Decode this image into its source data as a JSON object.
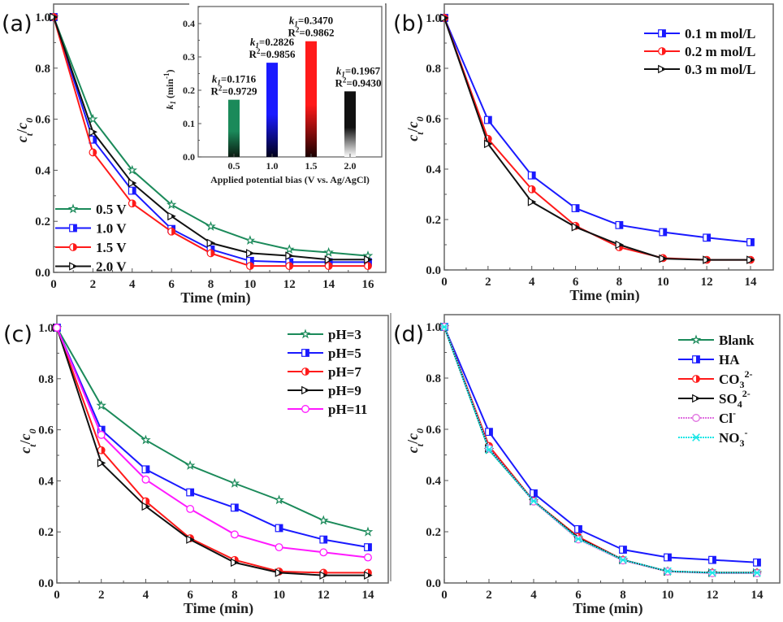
{
  "figure": {
    "panels": [
      "(a)",
      "(b)",
      "(c)",
      "(d)"
    ]
  },
  "chart_data": [
    {
      "id": "a",
      "panel_label": "(a)",
      "type": "line",
      "xlabel": "Time (min)",
      "ylabel": "c_t/c_0",
      "ylabel_parts": {
        "c1": "c",
        "sub1": "t",
        "slash": "/",
        "c2": "c",
        "sub2": "0"
      },
      "x": [
        0,
        2,
        4,
        6,
        8,
        10,
        12,
        14,
        16
      ],
      "xlim": [
        0,
        16.8
      ],
      "ylim": [
        0,
        1.05
      ],
      "xticks": [
        "0",
        "2",
        "4",
        "6",
        "8",
        "10",
        "12",
        "14",
        "16"
      ],
      "yticks": [
        "0.0",
        "0.2",
        "0.4",
        "0.6",
        "0.8",
        "1.0"
      ],
      "legend_position": "bottom-left",
      "series": [
        {
          "name": "0.5 V",
          "color": "#1b8a5a",
          "marker": "star",
          "values": [
            1.0,
            0.6,
            0.4,
            0.265,
            0.18,
            0.125,
            0.09,
            0.078,
            0.065
          ]
        },
        {
          "name": "1.0 V",
          "color": "#1a1aff",
          "marker": "half-square",
          "values": [
            1.0,
            0.52,
            0.32,
            0.17,
            0.09,
            0.045,
            0.04,
            0.04,
            0.04
          ]
        },
        {
          "name": "1.5 V",
          "color": "#ff1a1a",
          "marker": "half-circle",
          "values": [
            1.0,
            0.47,
            0.27,
            0.16,
            0.075,
            0.025,
            0.025,
            0.025,
            0.025
          ]
        },
        {
          "name": "2.0 V",
          "color": "#111111",
          "marker": "triangle-right",
          "values": [
            1.0,
            0.55,
            0.35,
            0.22,
            0.115,
            0.075,
            0.065,
            0.05,
            0.05
          ]
        }
      ],
      "inset": {
        "type": "bar",
        "xlabel": "Applied potential bias (V vs. Ag/AgCl)",
        "ylabel": "k_1 (min^-1)",
        "ylabel_parts": {
          "k": "k",
          "sub": "1",
          "unit": " (min",
          "sup": "-1",
          "close": ")"
        },
        "categories": [
          "0.5",
          "1.0",
          "1.5",
          "2.0"
        ],
        "values": [
          0.1716,
          0.2826,
          0.347,
          0.1967
        ],
        "colors": [
          "#1b8a5a",
          "#1a1aff",
          "#ff1a1a",
          "#111111"
        ],
        "gradient_bottom": [
          "#0a1a10",
          "#00001a",
          "#1a0000",
          "#ffffff"
        ],
        "yticks": [
          "0.0",
          "0.1",
          "0.2",
          "0.3",
          "0.4"
        ],
        "ylim": [
          0,
          0.45
        ],
        "annotations": [
          {
            "k_label": "k",
            "k_sub": "1",
            "k_value": "=0.1716",
            "r_label": "R",
            "r_sup": "2",
            "r_value": "=0.9729"
          },
          {
            "k_label": "k",
            "k_sub": "1",
            "k_value": "=0.2826",
            "r_label": "R",
            "r_sup": "2",
            "r_value": "=0.9856"
          },
          {
            "k_label": "k",
            "k_sub": "1",
            "k_value": "=0.3470",
            "r_label": "R",
            "r_sup": "2",
            "r_value": "=0.9862"
          },
          {
            "k_label": "k",
            "k_sub": "1",
            "k_value": "=0.1967",
            "r_label": "R",
            "r_sup": "2",
            "r_value": "=0.9430"
          }
        ]
      }
    },
    {
      "id": "b",
      "panel_label": "(b)",
      "type": "line",
      "xlabel": "Time (min)",
      "ylabel": "c_t/c_0",
      "ylabel_parts": {
        "c1": "c",
        "sub1": "t",
        "slash": "/",
        "c2": "c",
        "sub2": "0"
      },
      "x": [
        0,
        2,
        4,
        6,
        8,
        10,
        12,
        14
      ],
      "xlim": [
        0,
        14.7
      ],
      "ylim": [
        0,
        1.05
      ],
      "xticks": [
        "0",
        "2",
        "4",
        "6",
        "8",
        "10",
        "12",
        "14"
      ],
      "yticks": [
        "0.0",
        "0.2",
        "0.4",
        "0.6",
        "0.8",
        "1.0"
      ],
      "legend_position": "top-right",
      "series": [
        {
          "name": "0.1 m mol/L",
          "color": "#1a1aff",
          "marker": "half-square",
          "values": [
            1.0,
            0.595,
            0.375,
            0.245,
            0.178,
            0.15,
            0.128,
            0.11
          ]
        },
        {
          "name": "0.2 m mol/L",
          "color": "#ff1a1a",
          "marker": "half-circle",
          "values": [
            1.0,
            0.52,
            0.32,
            0.175,
            0.09,
            0.047,
            0.04,
            0.04
          ]
        },
        {
          "name": "0.3 m mol/L",
          "color": "#111111",
          "marker": "triangle-right",
          "values": [
            1.0,
            0.5,
            0.27,
            0.17,
            0.1,
            0.045,
            0.04,
            0.04
          ]
        }
      ]
    },
    {
      "id": "c",
      "panel_label": "(c)",
      "type": "line",
      "xlabel": "Time (min)",
      "ylabel": "c_t/c_0",
      "ylabel_parts": {
        "c1": "c",
        "sub1": "t",
        "slash": "/",
        "c2": "c",
        "sub2": "0"
      },
      "x": [
        0,
        2,
        4,
        6,
        8,
        10,
        12,
        14
      ],
      "xlim": [
        0,
        14.7
      ],
      "ylim": [
        0,
        1.05
      ],
      "xticks": [
        "0",
        "2",
        "4",
        "6",
        "8",
        "10",
        "12",
        "14"
      ],
      "yticks": [
        "0.0",
        "0.2",
        "0.4",
        "0.6",
        "0.8",
        "1.0"
      ],
      "legend_position": "top-right",
      "series": [
        {
          "name": "pH=3",
          "color": "#1b8a5a",
          "marker": "star",
          "values": [
            1.0,
            0.695,
            0.56,
            0.46,
            0.39,
            0.325,
            0.245,
            0.2
          ]
        },
        {
          "name": "pH=5",
          "color": "#1a1aff",
          "marker": "half-square",
          "values": [
            1.0,
            0.6,
            0.445,
            0.355,
            0.295,
            0.215,
            0.17,
            0.14
          ]
        },
        {
          "name": "pH=7",
          "color": "#ff1a1a",
          "marker": "half-circle",
          "values": [
            1.0,
            0.52,
            0.32,
            0.175,
            0.09,
            0.045,
            0.04,
            0.04
          ]
        },
        {
          "name": "pH=9",
          "color": "#111111",
          "marker": "triangle-right",
          "values": [
            1.0,
            0.47,
            0.3,
            0.17,
            0.08,
            0.04,
            0.03,
            0.03
          ]
        },
        {
          "name": "pH=11",
          "color": "#ff1aff",
          "marker": "open-circle",
          "values": [
            1.0,
            0.58,
            0.405,
            0.29,
            0.19,
            0.14,
            0.12,
            0.1
          ]
        }
      ]
    },
    {
      "id": "d",
      "panel_label": "(d)",
      "type": "line",
      "xlabel": "Time (min)",
      "ylabel": "c_t/c_0",
      "ylabel_parts": {
        "c1": "c",
        "sub1": "t",
        "slash": "/",
        "c2": "c",
        "sub2": "0"
      },
      "x": [
        0,
        2,
        4,
        6,
        8,
        10,
        12,
        14
      ],
      "xlim": [
        0,
        14.7
      ],
      "ylim": [
        0,
        1.05
      ],
      "xticks": [
        "0",
        "2",
        "4",
        "6",
        "8",
        "10",
        "12",
        "14"
      ],
      "yticks": [
        "0.0",
        "0.2",
        "0.4",
        "0.6",
        "0.8",
        "1.0"
      ],
      "legend_position": "top-right",
      "series": [
        {
          "name": "Blank",
          "label_base": "Blank",
          "label_sub": "",
          "label_sup": "",
          "color": "#1b8a5a",
          "marker": "star",
          "values": [
            1.0,
            0.52,
            0.32,
            0.175,
            0.09,
            0.045,
            0.04,
            0.04
          ]
        },
        {
          "name": "HA",
          "label_base": "HA",
          "label_sub": "",
          "label_sup": "",
          "color": "#1a1aff",
          "marker": "half-square",
          "values": [
            1.0,
            0.59,
            0.35,
            0.21,
            0.13,
            0.1,
            0.09,
            0.08
          ]
        },
        {
          "name": "CO3 2-",
          "label_base": "CO",
          "label_sub": "3",
          "label_sup": "2-",
          "color": "#ff1a1a",
          "marker": "half-circle",
          "values": [
            1.0,
            0.535,
            0.32,
            0.18,
            0.09,
            0.045,
            0.04,
            0.04
          ]
        },
        {
          "name": "SO4 2-",
          "label_base": "SO",
          "label_sub": "4",
          "label_sup": "2-",
          "color": "#111111",
          "marker": "triangle-right",
          "values": [
            1.0,
            0.525,
            0.32,
            0.175,
            0.09,
            0.045,
            0.04,
            0.04
          ]
        },
        {
          "name": "Cl-",
          "label_base": "Cl",
          "label_sub": "",
          "label_sup": "-",
          "color": "#e070e0",
          "marker": "open-circle",
          "values": [
            1.0,
            0.525,
            0.318,
            0.17,
            0.088,
            0.045,
            0.038,
            0.038
          ]
        },
        {
          "name": "NO3-",
          "label_base": "NO",
          "label_sub": "3",
          "label_sup": "-",
          "color": "#1ae6e6",
          "marker": "x-star",
          "values": [
            1.0,
            0.52,
            0.32,
            0.172,
            0.09,
            0.046,
            0.04,
            0.04
          ]
        }
      ]
    }
  ]
}
